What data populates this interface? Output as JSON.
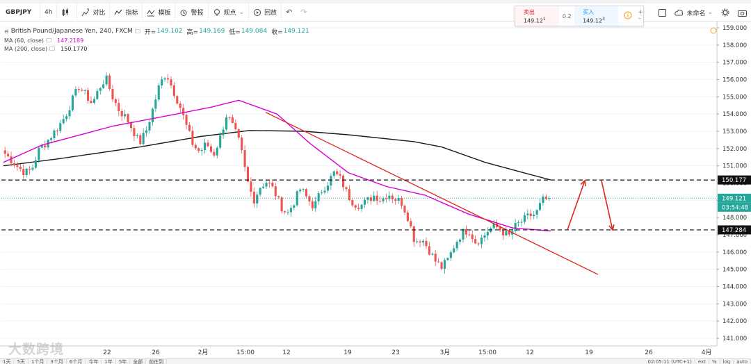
{
  "toolbar": {
    "symbol": "GBPJPY",
    "interval": "4h",
    "compare": "对比",
    "indicators": "指标",
    "templates": "模板",
    "alert": "警报",
    "view": "观点",
    "replay": "回放"
  },
  "trade": {
    "sell_label": "卖出",
    "sell_price": "149.12",
    "sell_sup": "1",
    "spread": "0.2",
    "buy_label": "买入",
    "buy_price": "149.12",
    "buy_sup": "3"
  },
  "right_tools": {
    "layout_name": "未命名"
  },
  "legend": {
    "title": "British Pound/Japanese Yen, 240, FXCM",
    "open_label": "开=",
    "open": "149.102",
    "high_label": "高=",
    "high": "149.169",
    "low_label": "低=",
    "low": "149.084",
    "close_label": "收=",
    "close": "149.121",
    "ma60_label": "MA (60, close)",
    "ma60_value": "147.2189",
    "ma200_label": "MA (200, close)",
    "ma200_value": "150.1770"
  },
  "watermark": "大数跨境",
  "bottom": {
    "ranges": [
      "1天",
      "5天",
      "1个月",
      "3个月",
      "6个月",
      "今年",
      "1年",
      "5年",
      "全部",
      "前往到"
    ],
    "time": "02:05:11 (UTC+1)",
    "extra": [
      "ext",
      "%",
      "log",
      "auto"
    ]
  },
  "colors": {
    "up": "#26a69a",
    "down": "#ef5350",
    "ma60": "#d400d4",
    "ma200": "#1a1a1a",
    "trend": "#e0251c",
    "arrow": "#e0251c",
    "dashed": "#111111"
  },
  "chart_data": {
    "type": "candlestick",
    "symbol": "British Pound/Japanese Yen",
    "interval": "240",
    "source": "FXCM",
    "y_range": [
      140.7,
      159.3
    ],
    "y_ticks": [
      "159.000",
      "158.000",
      "157.000",
      "156.000",
      "155.000",
      "154.000",
      "153.000",
      "152.000",
      "151.000",
      "150.000",
      "149.000",
      "148.000",
      "147.000",
      "146.000",
      "145.000",
      "144.000",
      "143.000",
      "142.000",
      "141.000"
    ],
    "x_ticks": [
      "22",
      "26",
      "2月",
      "15:00",
      "12",
      "19",
      "23",
      "3月",
      "15:00",
      "12",
      "19",
      "26",
      "4月"
    ],
    "price_labels": {
      "resistance": "150.177",
      "last": "149.121",
      "countdown": "03:54:48",
      "support": "147.284"
    },
    "horizontal_lines": [
      {
        "value": 150.177,
        "style": "dashed"
      },
      {
        "value": 147.284,
        "style": "dashed"
      }
    ],
    "last_price": 149.121,
    "trendline": [
      [
        0.0,
        154.1
      ],
      [
        1.0,
        144.7
      ]
    ],
    "arrows": [
      {
        "from": 147.28,
        "to": 150.18,
        "direction": "up"
      },
      {
        "from": 150.18,
        "to": 147.28,
        "direction": "down"
      }
    ],
    "ohlc_path": [
      151.7,
      151.3,
      150.9,
      150.6,
      150.8,
      151.9,
      152.3,
      152.8,
      153.3,
      153.9,
      154.8,
      155.6,
      155.1,
      154.6,
      155.5,
      156.1,
      155.0,
      154.2,
      153.8,
      153.1,
      152.3,
      153.0,
      154.3,
      155.7,
      156.4,
      155.4,
      154.5,
      153.3,
      152.2,
      151.8,
      152.3,
      151.6,
      152.6,
      154.0,
      153.2,
      152.2,
      150.2,
      149.0,
      149.8,
      150.1,
      149.6,
      148.7,
      148.2,
      148.9,
      149.7,
      149.1,
      148.6,
      149.5,
      150.0,
      150.6,
      150.2,
      149.3,
      148.8,
      148.7,
      149.0,
      149.3,
      149.0,
      149.4,
      149.1,
      148.9,
      148.0,
      146.6,
      146.8,
      146.2,
      145.5,
      145.1,
      145.6,
      146.5,
      147.1,
      147.3,
      146.6,
      146.8,
      147.3,
      147.5,
      147.2,
      146.9,
      147.5,
      147.8,
      148.1,
      148.2,
      149.0,
      149.1
    ],
    "ma60": [
      [
        0.0,
        151.2
      ],
      [
        0.07,
        152.2
      ],
      [
        0.2,
        153.3
      ],
      [
        0.3,
        153.9
      ],
      [
        0.38,
        154.4
      ],
      [
        0.43,
        154.8
      ],
      [
        0.5,
        154.0
      ],
      [
        0.56,
        152.3
      ],
      [
        0.63,
        150.6
      ],
      [
        0.7,
        149.8
      ],
      [
        0.77,
        149.3
      ],
      [
        0.85,
        148.2
      ],
      [
        0.93,
        147.4
      ],
      [
        1.0,
        147.22
      ]
    ],
    "ma200": [
      [
        0.0,
        151.0
      ],
      [
        0.1,
        151.4
      ],
      [
        0.25,
        152.1
      ],
      [
        0.36,
        152.7
      ],
      [
        0.45,
        153.05
      ],
      [
        0.55,
        153.0
      ],
      [
        0.63,
        152.8
      ],
      [
        0.75,
        152.4
      ],
      [
        0.8,
        152.1
      ],
      [
        0.88,
        151.2
      ],
      [
        0.95,
        150.6
      ],
      [
        1.0,
        150.18
      ]
    ]
  }
}
